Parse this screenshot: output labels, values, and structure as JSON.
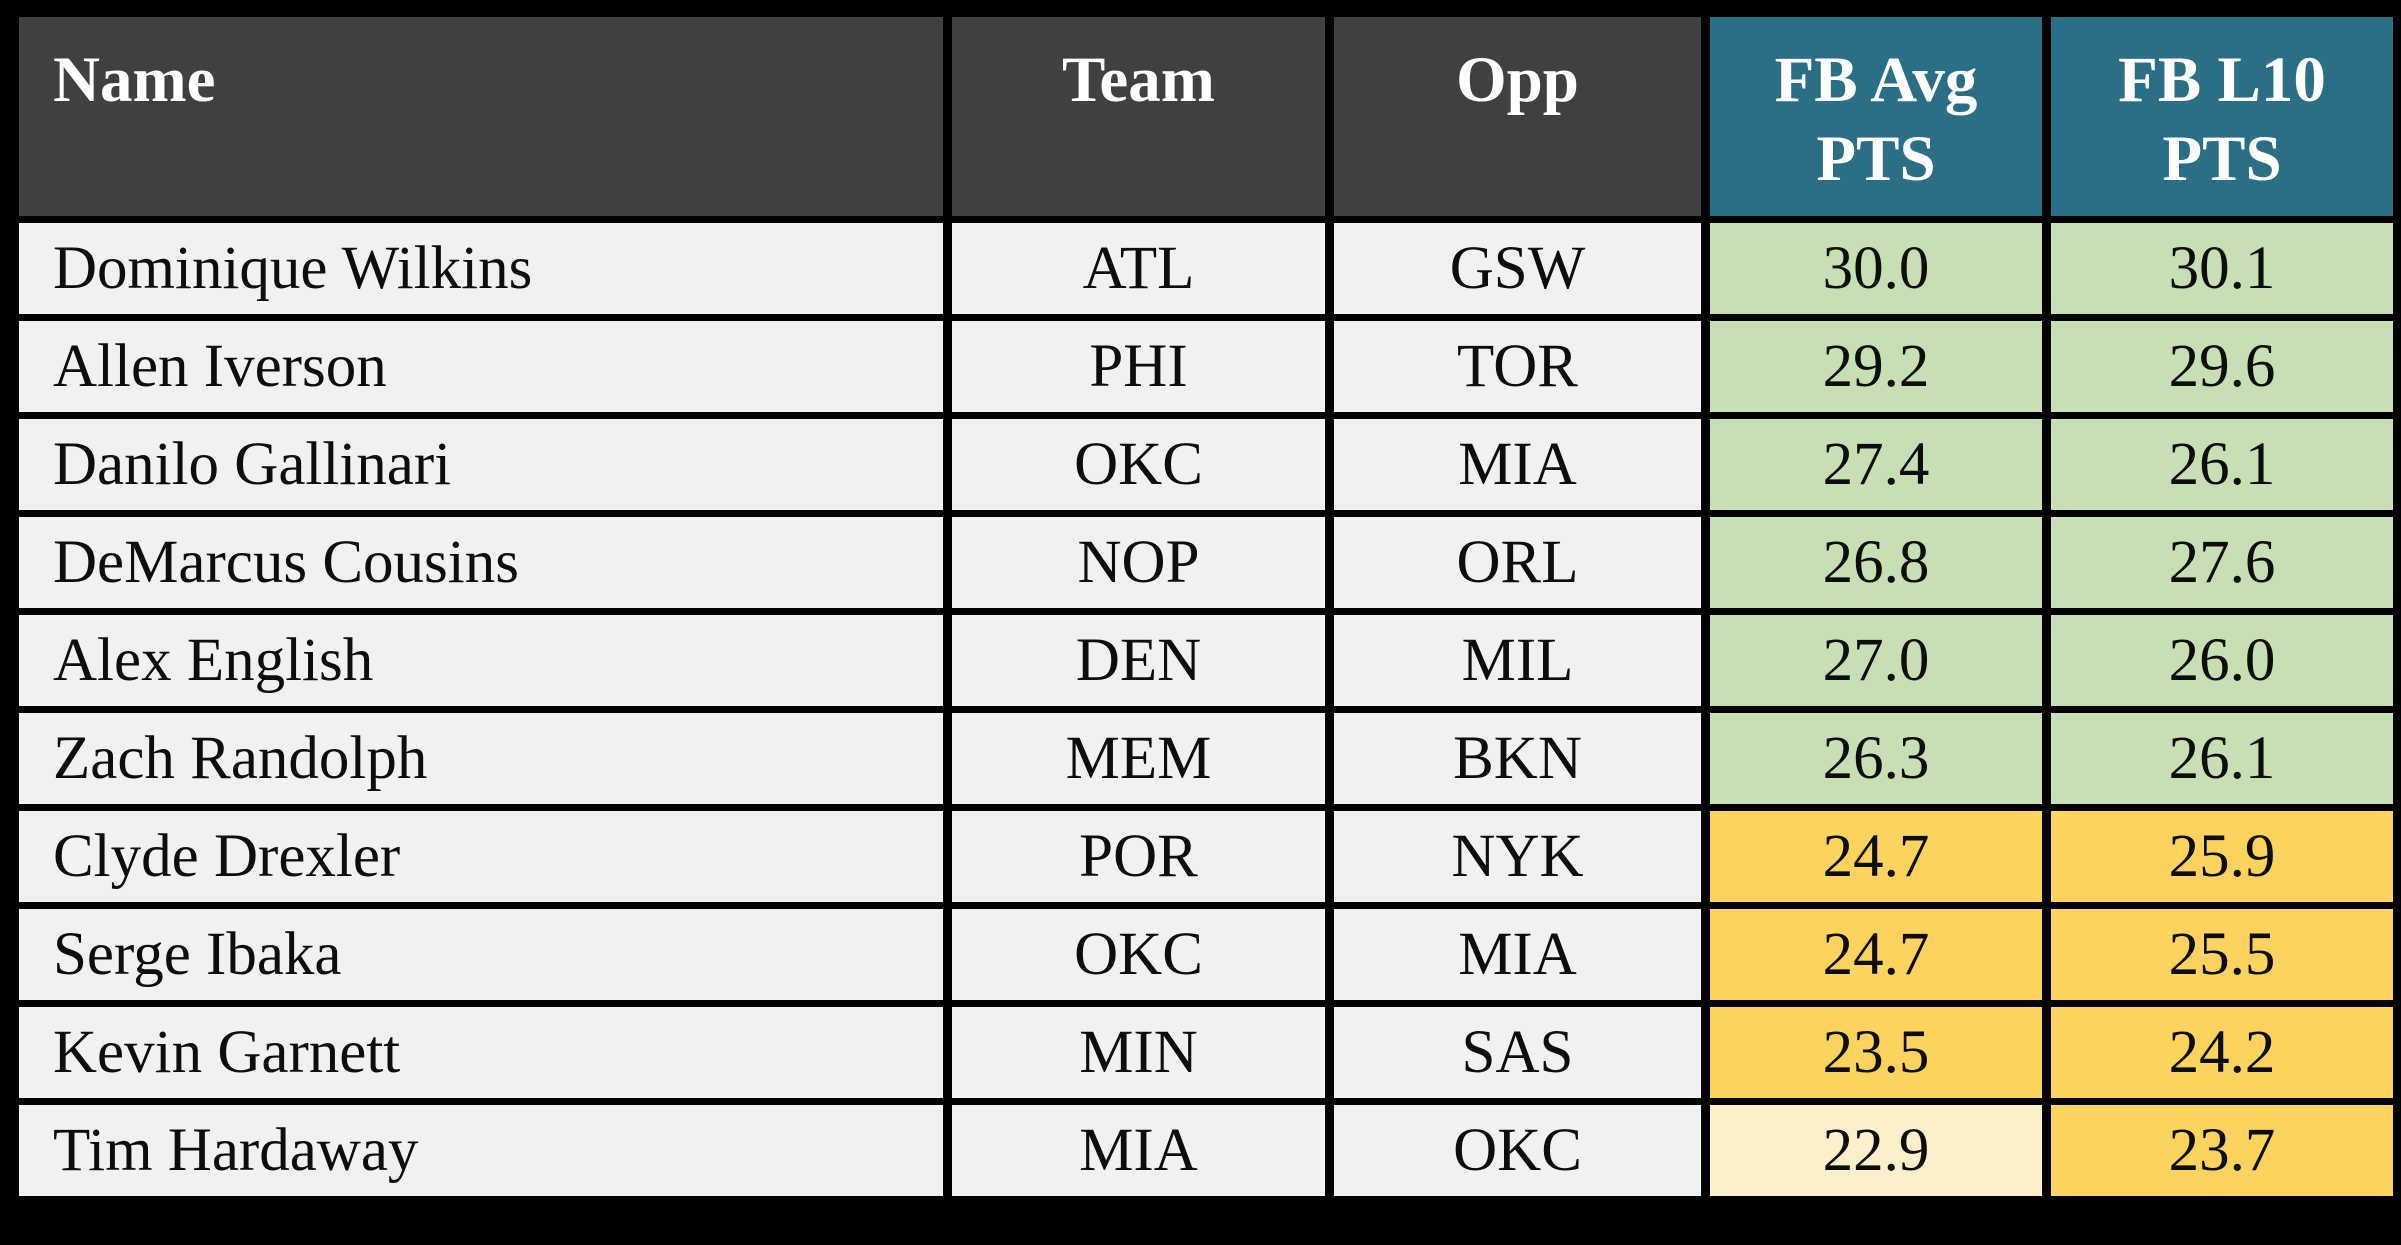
{
  "colors": {
    "page_background": "#000000",
    "header_dark_bg": "#404040",
    "header_teal_bg": "#2b6f87",
    "header_text": "#ffffff",
    "row_bg": "#f1f1f1",
    "tier_green": "#c6e0b4",
    "tier_gold": "#fcd35e",
    "tier_cream": "#fcf0ca",
    "grid_border": "#000000",
    "body_text": "#0d0d0d"
  },
  "chart_data": {
    "type": "table",
    "title": "",
    "columns": [
      "Name",
      "Team",
      "Opp",
      "FB Avg PTS",
      "FB L10 PTS"
    ],
    "rows": [
      {
        "name": "Dominique Wilkins",
        "team": "ATL",
        "opp": "GSW",
        "fb_avg_pts": "30.0",
        "fb_l10_pts": "30.1",
        "avg_tier": "green",
        "l10_tier": "green"
      },
      {
        "name": "Allen Iverson",
        "team": "PHI",
        "opp": "TOR",
        "fb_avg_pts": "29.2",
        "fb_l10_pts": "29.6",
        "avg_tier": "green",
        "l10_tier": "green"
      },
      {
        "name": "Danilo Gallinari",
        "team": "OKC",
        "opp": "MIA",
        "fb_avg_pts": "27.4",
        "fb_l10_pts": "26.1",
        "avg_tier": "green",
        "l10_tier": "green"
      },
      {
        "name": "DeMarcus Cousins",
        "team": "NOP",
        "opp": "ORL",
        "fb_avg_pts": "26.8",
        "fb_l10_pts": "27.6",
        "avg_tier": "green",
        "l10_tier": "green"
      },
      {
        "name": "Alex English",
        "team": "DEN",
        "opp": "MIL",
        "fb_avg_pts": "27.0",
        "fb_l10_pts": "26.0",
        "avg_tier": "green",
        "l10_tier": "green"
      },
      {
        "name": "Zach Randolph",
        "team": "MEM",
        "opp": "BKN",
        "fb_avg_pts": "26.3",
        "fb_l10_pts": "26.1",
        "avg_tier": "green",
        "l10_tier": "green"
      },
      {
        "name": "Clyde Drexler",
        "team": "POR",
        "opp": "NYK",
        "fb_avg_pts": "24.7",
        "fb_l10_pts": "25.9",
        "avg_tier": "gold",
        "l10_tier": "gold"
      },
      {
        "name": "Serge Ibaka",
        "team": "OKC",
        "opp": "MIA",
        "fb_avg_pts": "24.7",
        "fb_l10_pts": "25.5",
        "avg_tier": "gold",
        "l10_tier": "gold"
      },
      {
        "name": "Kevin Garnett",
        "team": "MIN",
        "opp": "SAS",
        "fb_avg_pts": "23.5",
        "fb_l10_pts": "24.2",
        "avg_tier": "gold",
        "l10_tier": "gold"
      },
      {
        "name": "Tim Hardaway",
        "team": "MIA",
        "opp": "OKC",
        "fb_avg_pts": "22.9",
        "fb_l10_pts": "23.7",
        "avg_tier": "cream",
        "l10_tier": "gold"
      }
    ]
  },
  "header": {
    "name_label": "Name",
    "team_label": "Team",
    "opp_label": "Opp",
    "fb_avg_line1": "FB Avg",
    "fb_avg_line2": "PTS",
    "fb_l10_line1": "FB L10",
    "fb_l10_line2": "PTS"
  }
}
